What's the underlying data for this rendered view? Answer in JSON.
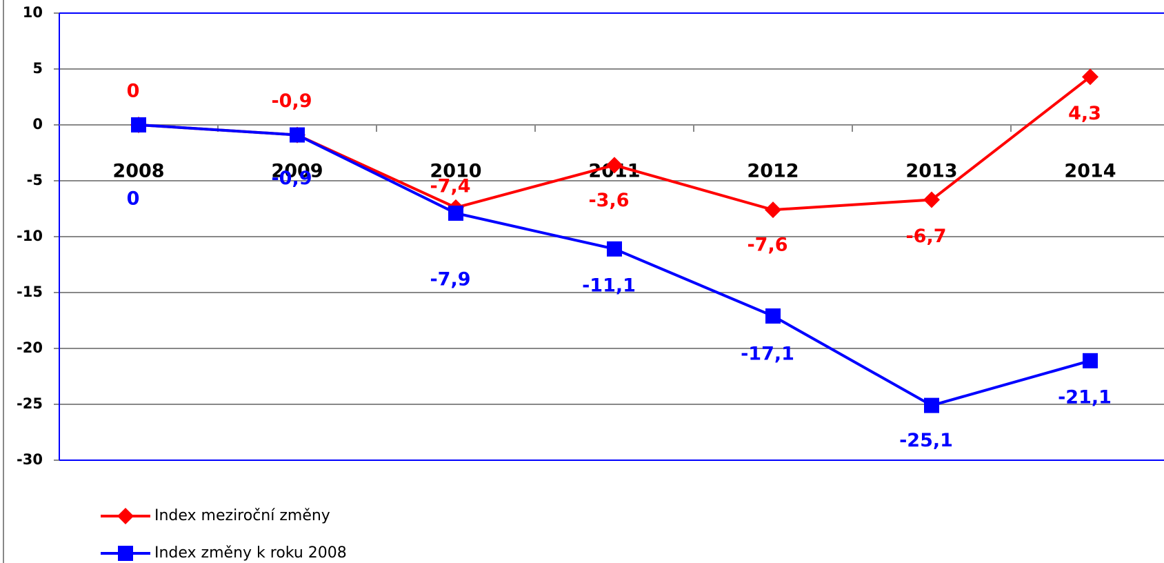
{
  "chart_data": {
    "type": "line",
    "categories": [
      "2008",
      "2009",
      "2010",
      "2011",
      "2012",
      "2013",
      "2014"
    ],
    "series": [
      {
        "name": "Index meziroční změny",
        "color": "#ff0000",
        "marker": "diamond",
        "values": [
          0,
          -0.9,
          -7.4,
          -3.6,
          -7.6,
          -6.7,
          4.3
        ],
        "value_labels": [
          "0",
          "-0,9",
          "-7,4",
          "-3,6",
          "-7,6",
          "-6,7",
          "4,3"
        ]
      },
      {
        "name": "Index změny k roku 2008",
        "color": "#0000ff",
        "marker": "square",
        "values": [
          0,
          -0.9,
          -7.9,
          -11.1,
          -17.1,
          -25.1,
          -21.1
        ],
        "value_labels": [
          "0",
          "-0,9",
          "-7,9",
          "-11,1",
          "-17,1",
          "-25,1",
          "-21,1"
        ]
      }
    ],
    "ylim": [
      -30,
      10
    ],
    "yticks": [
      -30,
      -25,
      -20,
      -15,
      -10,
      -5,
      0,
      5,
      10
    ],
    "grid": true,
    "legend": "bottom-left"
  }
}
